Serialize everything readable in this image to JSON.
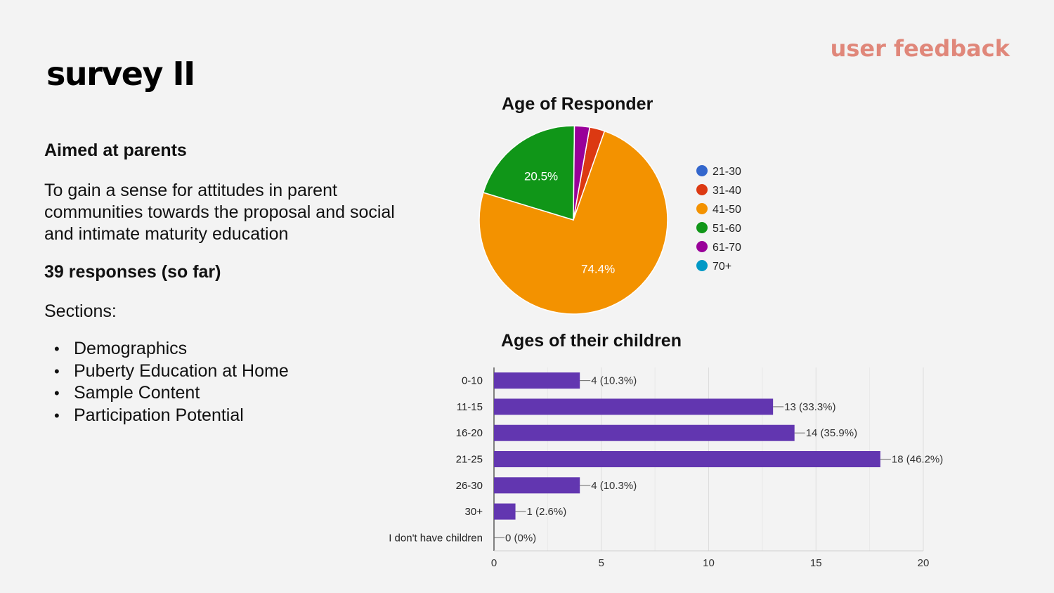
{
  "slide": {
    "title": "survey II",
    "tag": "user feedback"
  },
  "content": {
    "audience": "Aimed at parents",
    "purpose": "To gain a sense for attitudes in parent communities towards the proposal and social and intimate maturity education",
    "responses": "39 responses (so far)",
    "sections_label": "Sections:",
    "sections": [
      "Demographics",
      "Puberty Education at Home",
      "Sample Content",
      "Participation Potential"
    ]
  },
  "chart_data": [
    {
      "type": "pie",
      "title": "Age of Responder",
      "categories": [
        "21-30",
        "31-40",
        "41-50",
        "51-60",
        "61-70",
        "70+"
      ],
      "values": [
        0,
        2.6,
        74.4,
        20.5,
        2.6,
        0
      ],
      "colors": [
        "#3366cc",
        "#dc3912",
        "#f39200",
        "#109618",
        "#990099",
        "#0099c6"
      ],
      "slice_labels": {
        "41-50": "74.4%",
        "51-60": "20.5%"
      },
      "legend_position": "right"
    },
    {
      "type": "bar",
      "orientation": "horizontal",
      "title": "Ages of their children",
      "categories": [
        "0-10",
        "11-15",
        "16-20",
        "21-25",
        "26-30",
        "30+",
        "I don't have children"
      ],
      "values": [
        4,
        13,
        14,
        18,
        4,
        1,
        0
      ],
      "labels": [
        "4 (10.3%)",
        "13 (33.3%)",
        "14 (35.9%)",
        "18 (46.2%)",
        "4 (10.3%)",
        "1 (2.6%)",
        "0 (0%)"
      ],
      "xlim": [
        0,
        20
      ],
      "xticks": [
        0,
        5,
        10,
        15,
        20
      ],
      "color": "#6236b0",
      "grid": true
    }
  ]
}
